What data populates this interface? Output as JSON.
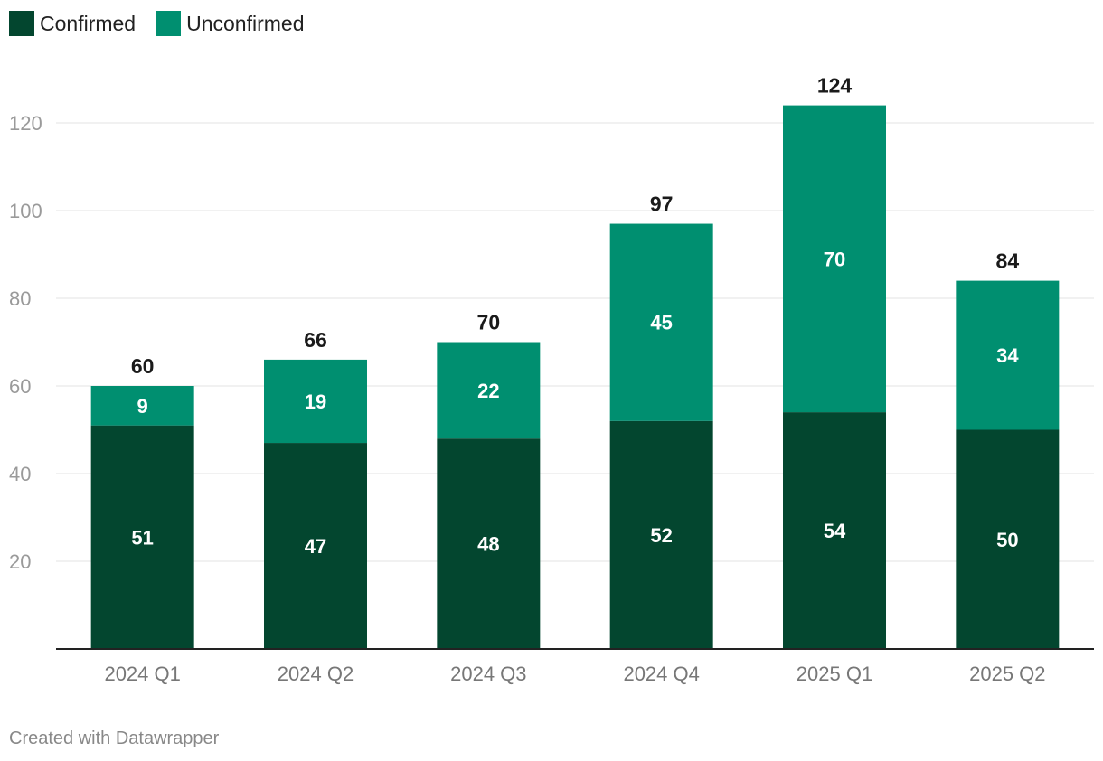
{
  "chart_data": {
    "type": "bar",
    "stacked": true,
    "categories": [
      "2024 Q1",
      "2024 Q2",
      "2024 Q3",
      "2024 Q4",
      "2025 Q1",
      "2025 Q2"
    ],
    "series": [
      {
        "name": "Confirmed",
        "color": "#03462f",
        "values": [
          51,
          47,
          48,
          52,
          54,
          50
        ]
      },
      {
        "name": "Unconfirmed",
        "color": "#008f70",
        "values": [
          9,
          19,
          22,
          45,
          70,
          34
        ]
      }
    ],
    "totals": [
      60,
      66,
      70,
      97,
      124,
      84
    ],
    "yticks": [
      20,
      40,
      60,
      80,
      100,
      120
    ],
    "ylim": [
      0,
      130
    ],
    "grid": true,
    "legend_position": "top-left"
  },
  "footer": "Created with Datawrapper"
}
